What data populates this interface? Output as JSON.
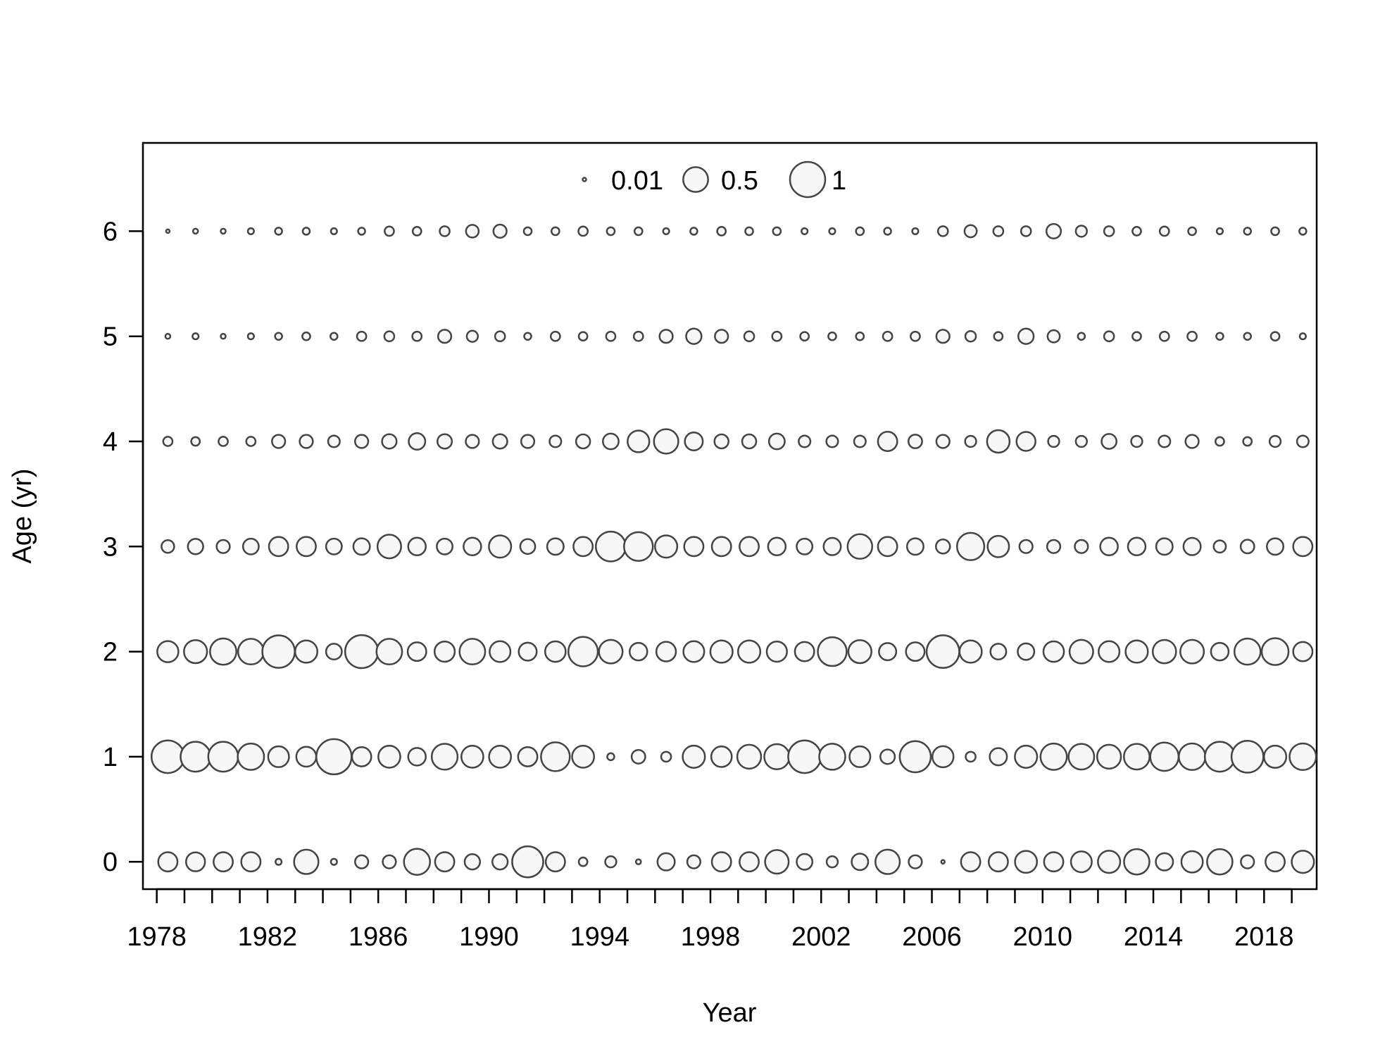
{
  "chart_data": {
    "type": "scatter",
    "subtype": "bubble",
    "title": "",
    "xlabel": "Year",
    "ylabel": "Age (yr)",
    "xlim": [
      1977.5,
      2019.9
    ],
    "ylim": [
      -0.26,
      6.84
    ],
    "x_ticks": [
      1978,
      1979,
      1980,
      1981,
      1982,
      1983,
      1984,
      1985,
      1986,
      1987,
      1988,
      1989,
      1990,
      1991,
      1992,
      1993,
      1994,
      1995,
      1996,
      1997,
      1998,
      1999,
      2000,
      2001,
      2002,
      2003,
      2004,
      2005,
      2006,
      2007,
      2008,
      2009,
      2010,
      2011,
      2012,
      2013,
      2014,
      2015,
      2016,
      2017,
      2018,
      2019
    ],
    "x_tick_labels": [
      "1978",
      "1982",
      "1986",
      "1990",
      "1994",
      "1998",
      "2002",
      "2006",
      "2010",
      "2014",
      "2018"
    ],
    "x_tick_label_values": [
      1978,
      1982,
      1986,
      1990,
      1994,
      1998,
      2002,
      2006,
      2010,
      2014,
      2018
    ],
    "y_ticks": [
      0,
      1,
      2,
      3,
      4,
      5,
      6
    ],
    "y_tick_labels": [
      "0",
      "1",
      "2",
      "3",
      "4",
      "5",
      "6"
    ],
    "grid": false,
    "legend": {
      "placement": "top-center",
      "entries": [
        {
          "label": "0.01",
          "value": 0.01
        },
        {
          "label": "0.5",
          "value": 0.5
        },
        {
          "label": "1",
          "value": 1
        }
      ]
    },
    "bubble_years": [
      1978.4,
      1979.4,
      1980.4,
      1981.4,
      1982.4,
      1983.4,
      1984.4,
      1985.4,
      1986.4,
      1987.4,
      1988.4,
      1989.4,
      1990.4,
      1991.4,
      1992.4,
      1993.4,
      1994.4,
      1995.4,
      1996.4,
      1997.4,
      1998.4,
      1999.4,
      2000.4,
      2001.4,
      2002.4,
      2003.4,
      2004.4,
      2005.4,
      2006.4,
      2007.4,
      2008.4,
      2009.4,
      2010.4,
      2011.4,
      2012.4,
      2013.4,
      2014.4,
      2015.4,
      2016.4,
      2017.4,
      2018.4,
      2019.4
    ],
    "ages": [
      0,
      1,
      2,
      3,
      4,
      5,
      6
    ],
    "values_by_age": [
      [
        0.3,
        0.29,
        0.3,
        0.3,
        0.03,
        0.48,
        0.03,
        0.14,
        0.14,
        0.55,
        0.3,
        0.19,
        0.19,
        0.78,
        0.3,
        0.06,
        0.1,
        0.02,
        0.24,
        0.14,
        0.3,
        0.3,
        0.45,
        0.2,
        0.1,
        0.22,
        0.48,
        0.14,
        0.01,
        0.3,
        0.3,
        0.39,
        0.3,
        0.35,
        0.4,
        0.52,
        0.24,
        0.37,
        0.52,
        0.14,
        0.3,
        0.4
      ],
      [
        0.86,
        0.72,
        0.72,
        0.56,
        0.35,
        0.32,
        1.0,
        0.3,
        0.39,
        0.25,
        0.54,
        0.39,
        0.39,
        0.3,
        0.67,
        0.39,
        0.04,
        0.15,
        0.08,
        0.4,
        0.34,
        0.46,
        0.51,
        0.86,
        0.55,
        0.35,
        0.17,
        0.78,
        0.36,
        0.08,
        0.24,
        0.4,
        0.56,
        0.53,
        0.46,
        0.53,
        0.65,
        0.57,
        0.72,
        0.82,
        0.4,
        0.57
      ],
      [
        0.36,
        0.43,
        0.56,
        0.53,
        0.85,
        0.4,
        0.2,
        0.88,
        0.53,
        0.28,
        0.33,
        0.53,
        0.35,
        0.26,
        0.34,
        0.7,
        0.45,
        0.25,
        0.31,
        0.35,
        0.4,
        0.4,
        0.33,
        0.3,
        0.67,
        0.43,
        0.24,
        0.28,
        0.86,
        0.4,
        0.2,
        0.22,
        0.34,
        0.45,
        0.35,
        0.4,
        0.44,
        0.45,
        0.25,
        0.55,
        0.58,
        0.3
      ],
      [
        0.13,
        0.19,
        0.14,
        0.2,
        0.3,
        0.3,
        0.2,
        0.22,
        0.45,
        0.25,
        0.2,
        0.25,
        0.4,
        0.18,
        0.22,
        0.3,
        0.72,
        0.67,
        0.4,
        0.3,
        0.3,
        0.3,
        0.25,
        0.2,
        0.24,
        0.49,
        0.3,
        0.22,
        0.16,
        0.6,
        0.37,
        0.14,
        0.14,
        0.14,
        0.25,
        0.25,
        0.22,
        0.24,
        0.12,
        0.15,
        0.22,
        0.3
      ],
      [
        0.07,
        0.06,
        0.07,
        0.07,
        0.14,
        0.14,
        0.11,
        0.14,
        0.17,
        0.22,
        0.17,
        0.14,
        0.17,
        0.14,
        0.11,
        0.16,
        0.2,
        0.38,
        0.48,
        0.26,
        0.16,
        0.16,
        0.2,
        0.11,
        0.11,
        0.11,
        0.3,
        0.15,
        0.14,
        0.1,
        0.41,
        0.29,
        0.1,
        0.1,
        0.18,
        0.1,
        0.11,
        0.14,
        0.06,
        0.06,
        0.1,
        0.11
      ],
      [
        0.02,
        0.03,
        0.02,
        0.03,
        0.04,
        0.05,
        0.04,
        0.07,
        0.08,
        0.07,
        0.14,
        0.1,
        0.08,
        0.04,
        0.07,
        0.06,
        0.07,
        0.07,
        0.14,
        0.19,
        0.14,
        0.08,
        0.07,
        0.06,
        0.05,
        0.05,
        0.07,
        0.07,
        0.14,
        0.09,
        0.06,
        0.19,
        0.12,
        0.04,
        0.08,
        0.06,
        0.07,
        0.07,
        0.04,
        0.04,
        0.06,
        0.03
      ],
      [
        0.01,
        0.02,
        0.02,
        0.03,
        0.04,
        0.04,
        0.03,
        0.04,
        0.07,
        0.06,
        0.08,
        0.13,
        0.14,
        0.05,
        0.05,
        0.07,
        0.05,
        0.05,
        0.03,
        0.04,
        0.06,
        0.05,
        0.05,
        0.03,
        0.03,
        0.05,
        0.04,
        0.03,
        0.08,
        0.12,
        0.08,
        0.08,
        0.17,
        0.1,
        0.08,
        0.06,
        0.07,
        0.05,
        0.03,
        0.04,
        0.05,
        0.04
      ]
    ]
  }
}
